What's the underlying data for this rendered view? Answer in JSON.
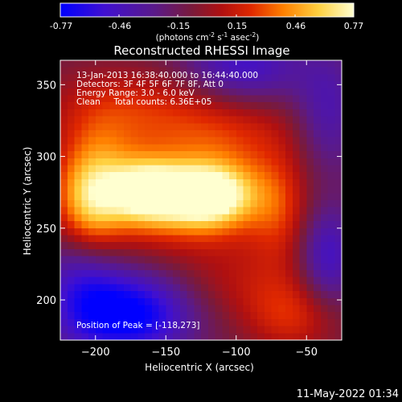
{
  "chart_data": {
    "type": "heatmap",
    "title": "Reconstructed RHESSI Image",
    "xlabel": "Heliocentric X (arcsec)",
    "ylabel": "Heliocentric Y (arcsec)",
    "xlim": [
      -225,
      -25
    ],
    "ylim": [
      172,
      367
    ],
    "x_ticks": [
      -200,
      -150,
      -100,
      -50
    ],
    "y_ticks": [
      200,
      250,
      300,
      350
    ],
    "colorbar": {
      "min": -0.77,
      "max": 0.77,
      "ticks": [
        "-0.77",
        "-0.46",
        "-0.15",
        "0.15",
        "0.46",
        "0.77"
      ],
      "units": "(photons cm",
      "units_exp1": "-2",
      "units_mid": " s",
      "units_exp2": "-1",
      "units_mid2": " asec",
      "units_exp3": "-2",
      "units_end": ")"
    },
    "annotations": [
      "13-Jan-2013 16:38:40.000 to 16:44:40.000",
      "Detectors: 3F 4F 5F 6F 7F 8F, Att 0",
      "Energy Range: 3.0 - 6.0 keV",
      "Clean     Total counts: 6.36E+05"
    ],
    "peak_label": "Position of Peak = [-118,273]",
    "sources": [
      {
        "x": -120,
        "y": 273,
        "amp": 0.77,
        "sx": 22,
        "sy": 15
      },
      {
        "x": -163,
        "y": 276,
        "amp": 0.64,
        "sx": 18,
        "sy": 15
      },
      {
        "x": -140,
        "y": 268,
        "amp": 0.45,
        "sx": 48,
        "sy": 24
      },
      {
        "x": -200,
        "y": 285,
        "amp": 0.42,
        "sx": 20,
        "sy": 28
      },
      {
        "x": -205,
        "y": 262,
        "amp": 0.32,
        "sx": 16,
        "sy": 24
      },
      {
        "x": -178,
        "y": 333,
        "amp": 0.28,
        "sx": 40,
        "sy": 20
      },
      {
        "x": -110,
        "y": 315,
        "amp": 0.3,
        "sx": 40,
        "sy": 22
      },
      {
        "x": -70,
        "y": 262,
        "amp": 0.25,
        "sx": 15,
        "sy": 28
      },
      {
        "x": -60,
        "y": 188,
        "amp": 0.3,
        "sx": 24,
        "sy": 18
      },
      {
        "x": -95,
        "y": 212,
        "amp": 0.18,
        "sx": 35,
        "sy": 20
      },
      {
        "x": -175,
        "y": 190,
        "amp": -0.68,
        "sx": 30,
        "sy": 20
      },
      {
        "x": -210,
        "y": 212,
        "amp": -0.35,
        "sx": 20,
        "sy": 28
      },
      {
        "x": -95,
        "y": 362,
        "amp": -0.4,
        "sx": 30,
        "sy": 18
      },
      {
        "x": -35,
        "y": 230,
        "amp": -0.4,
        "sx": 14,
        "sy": 25
      },
      {
        "x": -35,
        "y": 330,
        "amp": -0.3,
        "sx": 16,
        "sy": 30
      }
    ]
  },
  "footer": {
    "date": "11-May-2022 01:34"
  }
}
